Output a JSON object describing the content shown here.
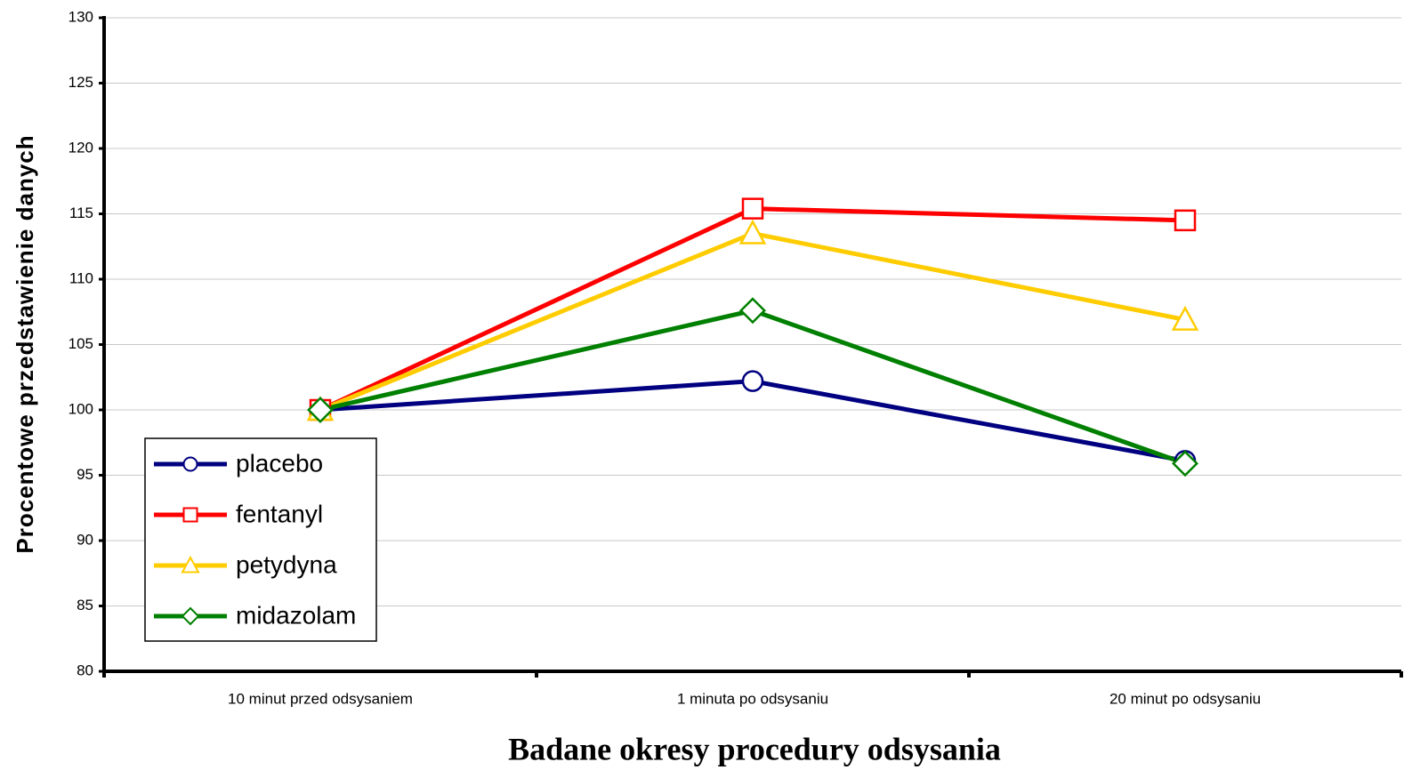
{
  "chart_data": {
    "type": "line",
    "x_label": "Badane okresy procedury odsysania",
    "y_label": "Procentowe przedstawienie danych",
    "categories": [
      "10 minut przed odsysaniem",
      "1 minuta po odsysaniu",
      "20 minut po odsysaniu"
    ],
    "series": [
      {
        "name": "placebo",
        "color": "#000080",
        "marker": "circle",
        "values": [
          100,
          102.2,
          96.1
        ]
      },
      {
        "name": "fentanyl",
        "color": "#ff0000",
        "marker": "square",
        "values": [
          100,
          115.4,
          114.5
        ]
      },
      {
        "name": "petydyna",
        "color": "#ffcc00",
        "marker": "triangle",
        "values": [
          100,
          113.5,
          106.9
        ]
      },
      {
        "name": "midazolam",
        "color": "#008000",
        "marker": "diamond",
        "values": [
          100,
          107.6,
          95.9
        ]
      }
    ],
    "ylim": [
      80,
      130
    ],
    "yticks": [
      80,
      85,
      90,
      95,
      100,
      105,
      110,
      115,
      120,
      125,
      130
    ],
    "grid": true,
    "legend": "lower left"
  }
}
